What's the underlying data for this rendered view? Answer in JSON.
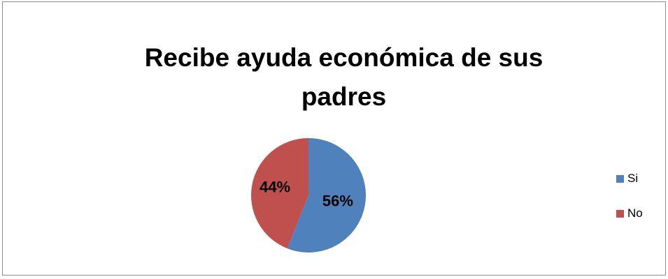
{
  "chart_data": {
    "type": "pie",
    "title": "Recibe ayuda económica de sus padres",
    "categories": [
      "Si",
      "No"
    ],
    "values": [
      56,
      44
    ],
    "data_labels": [
      "56%",
      "44%"
    ],
    "colors": [
      "#4f81bd",
      "#c0504d"
    ],
    "legend_position": "right"
  }
}
